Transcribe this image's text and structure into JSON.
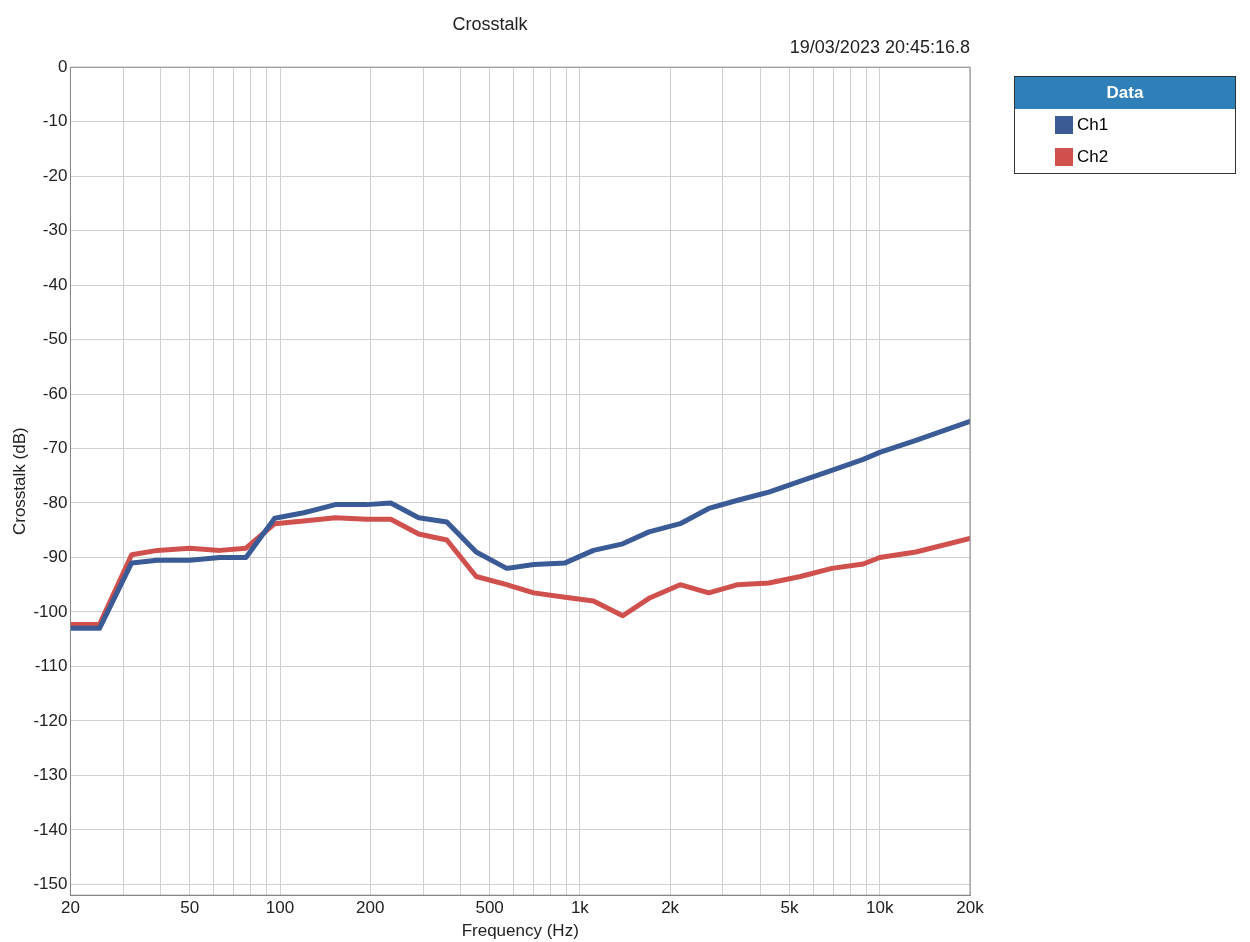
{
  "chart_data": {
    "type": "line",
    "title": "Crosstalk",
    "subtitle": "19/03/2023 20:45:16.8",
    "xlabel": "Frequency (Hz)",
    "ylabel": "Crosstalk (dB)",
    "legend_title": "Data",
    "legend": "right",
    "log": "x",
    "grid": true,
    "marker": "none",
    "line_style": "solid",
    "xlim": [
      20,
      20000
    ],
    "ylim": [
      -152,
      0
    ],
    "xticks": [
      20,
      {
        "value": 30,
        "label": null
      },
      {
        "value": 40,
        "label": null
      },
      50,
      {
        "value": 60,
        "label": null
      },
      {
        "value": 70,
        "label": null
      },
      {
        "value": 80,
        "label": null
      },
      {
        "value": 90,
        "label": null
      },
      100,
      200,
      {
        "value": 300,
        "label": null
      },
      {
        "value": 400,
        "label": null
      },
      500,
      {
        "value": 600,
        "label": null
      },
      {
        "value": 700,
        "label": null
      },
      {
        "value": 800,
        "label": null
      },
      {
        "value": 900,
        "label": null
      },
      {
        "value": 1000,
        "label": "1k"
      },
      {
        "value": 2000,
        "label": "2k"
      },
      {
        "value": 3000,
        "label": null
      },
      {
        "value": 4000,
        "label": null
      },
      {
        "value": 5000,
        "label": "5k"
      },
      {
        "value": 6000,
        "label": null
      },
      {
        "value": 7000,
        "label": null
      },
      {
        "value": 8000,
        "label": null
      },
      {
        "value": 9000,
        "label": null
      },
      {
        "value": 10000,
        "label": "10k"
      },
      {
        "value": 20000,
        "label": "20k"
      }
    ],
    "yticks": [
      0,
      -10,
      -20,
      -30,
      -40,
      -50,
      -60,
      -70,
      -80,
      -90,
      -100,
      -110,
      -120,
      -130,
      -140,
      -150
    ],
    "series": [
      {
        "name": "Ch1",
        "color": "#3b5b97",
        "x": [
          20,
          25,
          32,
          39,
          50,
          63,
          77,
          96,
          120,
          153,
          194,
          234,
          290,
          360,
          451,
          570,
          702,
          893,
          1110,
          1390,
          1700,
          2160,
          2690,
          3360,
          4270,
          5440,
          6920,
          8810,
          10000,
          13200,
          20000
        ],
        "values": [
          -103,
          -103,
          -91,
          -90.5,
          -90.5,
          -90,
          -90,
          -82.8,
          -81.8,
          -80.3,
          -80.3,
          -80,
          -82.7,
          -83.5,
          -89,
          -92,
          -91.3,
          -91,
          -88.7,
          -87.5,
          -85.3,
          -83.8,
          -81,
          -79.5,
          -78,
          -76,
          -74,
          -72,
          -70.7,
          -68.5,
          -65
        ]
      },
      {
        "name": "Ch2",
        "color": "#d0504e",
        "x": [
          20,
          25,
          32,
          39,
          50,
          63,
          77,
          96,
          120,
          153,
          194,
          234,
          290,
          360,
          451,
          570,
          702,
          893,
          1110,
          1390,
          1700,
          2160,
          2690,
          3360,
          4270,
          5440,
          6920,
          8810,
          10000,
          13200,
          20000
        ],
        "values": [
          -102.3,
          -102.3,
          -89.5,
          -88.7,
          -88.3,
          -88.7,
          -88.3,
          -83.8,
          -83.3,
          -82.7,
          -83,
          -83,
          -85.7,
          -86.8,
          -93.5,
          -95,
          -96.5,
          -97.3,
          -98,
          -100.7,
          -97.5,
          -95,
          -96.5,
          -95,
          -94.7,
          -93.5,
          -92,
          -91.2,
          -90,
          -89,
          -86.5
        ]
      }
    ]
  }
}
